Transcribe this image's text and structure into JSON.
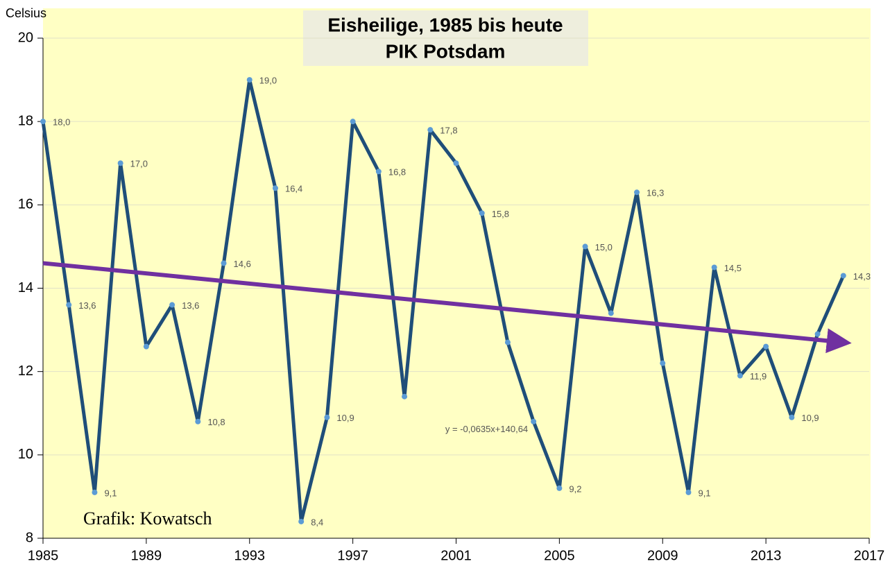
{
  "chart_data": {
    "type": "line",
    "title": "Eisheilige, 1985 bis heute",
    "subtitle": "PIK Potsdam",
    "y_label": "Celsius",
    "annotation": "Grafik: Kowatsch",
    "x": [
      1985,
      1986,
      1987,
      1988,
      1989,
      1990,
      1991,
      1992,
      1993,
      1994,
      1995,
      1996,
      1997,
      1998,
      1999,
      2000,
      2001,
      2002,
      2003,
      2004,
      2005,
      2006,
      2007,
      2008,
      2009,
      2010,
      2011,
      2012,
      2013,
      2014,
      2015,
      2016
    ],
    "values": [
      18.0,
      13.6,
      9.1,
      17.0,
      12.6,
      13.6,
      10.8,
      14.6,
      19.0,
      16.4,
      8.4,
      10.9,
      18.0,
      16.8,
      11.4,
      17.8,
      17.0,
      15.8,
      12.7,
      10.8,
      9.2,
      15.0,
      13.4,
      16.3,
      12.2,
      9.1,
      14.5,
      11.9,
      12.6,
      10.9,
      12.9,
      14.3
    ],
    "value_labels": [
      "18,0",
      "13,6",
      "9,1",
      "17,0",
      null,
      "13,6",
      "10,8",
      "14,6",
      "19,0",
      "16,4",
      "8,4",
      "10,9",
      null,
      "16,8",
      null,
      "17,8",
      null,
      "15,8",
      null,
      null,
      "9,2",
      "15,0",
      null,
      "16,3",
      null,
      "9,1",
      "14,5",
      "11,9",
      null,
      "10,9",
      null,
      "14,3"
    ],
    "color": "#1f4e79",
    "marker_color": "#5b9bd5",
    "trend": {
      "label": "y = -0,0635x+140,64",
      "x": [
        1985,
        2016
      ],
      "values": [
        14.6,
        12.7
      ],
      "color": "#7030a0"
    },
    "xlim": [
      1985,
      2017
    ],
    "xticks": [
      1985,
      1989,
      1993,
      1997,
      2001,
      2005,
      2009,
      2013,
      2017
    ],
    "ylim": [
      8,
      20
    ],
    "yticks": [
      8,
      10,
      12,
      14,
      16,
      18,
      20
    ],
    "grid": true,
    "background": "#ffffc4"
  }
}
